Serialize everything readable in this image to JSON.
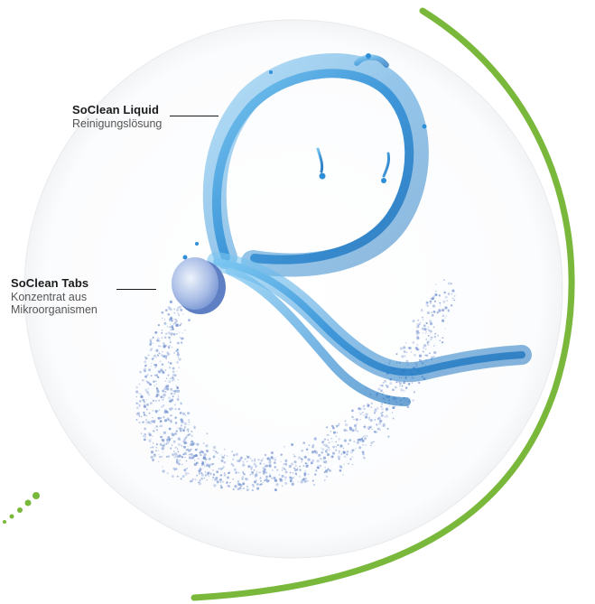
{
  "labels": {
    "liquid": {
      "title": "SoClean Liquid",
      "subtitle": "Reinigungslösung"
    },
    "tabs": {
      "title": "SoClean Tabs",
      "subtitle_line1": "Konzentrat aus",
      "subtitle_line2": "Mikroorganismen"
    }
  },
  "colors": {
    "accent_green": "#7ab83c",
    "water_blue": "#3a9ad9",
    "powder_blue": "#6f8fcf",
    "text": "#1a1a1a",
    "subtext": "#555555"
  }
}
